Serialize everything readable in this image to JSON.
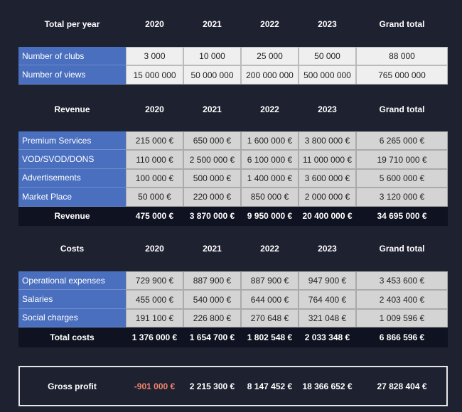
{
  "sections": [
    {
      "header": [
        "Total per year",
        "2020",
        "2021",
        "2022",
        "2023",
        "Grand total"
      ],
      "rows": [
        [
          "Number of clubs",
          "3 000",
          "10 000",
          "25 000",
          "50 000",
          "88 000"
        ],
        [
          "Number of views",
          "15 000 000",
          "50 000 000",
          "200 000 000",
          "500 000 000",
          "765 000 000"
        ]
      ]
    },
    {
      "header": [
        "Revenue",
        "2020",
        "2021",
        "2022",
        "2023",
        "Grand total"
      ],
      "rows": [
        [
          "Premium Services",
          "215 000 €",
          "650 000 €",
          "1 600 000 €",
          "3 800 000 €",
          "6 265 000 €"
        ],
        [
          "VOD/SVOD/DONS",
          "110 000 €",
          "2 500 000 €",
          "6 100 000 €",
          "11 000 000 €",
          "19 710 000 €"
        ],
        [
          "Advertisements",
          "100 000 €",
          "500 000 €",
          "1 400 000 €",
          "3 600 000 €",
          "5 600 000 €"
        ],
        [
          "Market Place",
          "50 000 €",
          "220 000 €",
          "850 000 €",
          "2 000 000 €",
          "3 120 000 €"
        ]
      ],
      "total": [
        "Revenue",
        "475 000 €",
        "3 870 000 €",
        "9 950 000 €",
        "20 400 000 €",
        "34 695 000 €"
      ]
    },
    {
      "header": [
        "Costs",
        "2020",
        "2021",
        "2022",
        "2023",
        "Grand total"
      ],
      "rows": [
        [
          "Operational expenses",
          "729 900 €",
          "887 900 €",
          "887 900 €",
          "947 900 €",
          "3 453 600 €"
        ],
        [
          "Salaries",
          "455 000 €",
          "540 000 €",
          "644 000 €",
          "764 400 €",
          "2 403 400 €"
        ],
        [
          "Social charges",
          "191 100 €",
          "226 800 €",
          "270 648 €",
          "321 048 €",
          "1 009 596 €"
        ]
      ],
      "total": [
        "Total costs",
        "1 376 000 €",
        "1 654 700 €",
        "1 802 548 €",
        "2 033 348 €",
        "6 866 596 €"
      ]
    }
  ],
  "gross_profit": [
    "Gross profit",
    "-901 000 €",
    "2 215 300 €",
    "8 147 452 €",
    "18 366 652 €",
    "27 828 404 €"
  ]
}
